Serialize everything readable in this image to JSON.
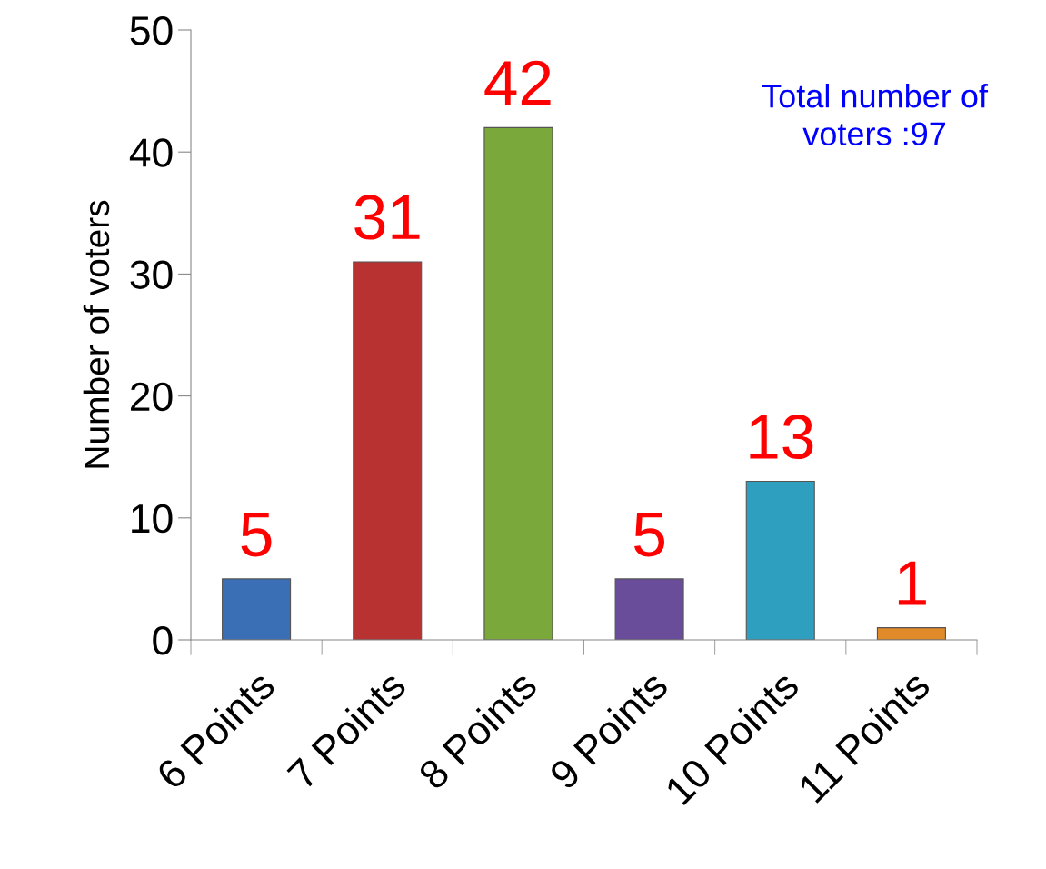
{
  "chart_data": {
    "type": "bar",
    "ylabel": "Number of voters",
    "categories": [
      "6 Points",
      "7 Points",
      "8 Points",
      "9 Points",
      "10 Points",
      "11 Points"
    ],
    "values": [
      5,
      31,
      42,
      5,
      13,
      1
    ],
    "colors": [
      "#3a6fb5",
      "#b83232",
      "#7aa83a",
      "#6a4d9a",
      "#2f9fbf",
      "#e08a2a"
    ],
    "ylim": [
      0,
      50
    ],
    "yticks": [
      0,
      10,
      20,
      30,
      40,
      50
    ],
    "data_labels": true,
    "annotations": [
      "Total number of\nvoters :97"
    ],
    "grid": false,
    "legend": false
  }
}
